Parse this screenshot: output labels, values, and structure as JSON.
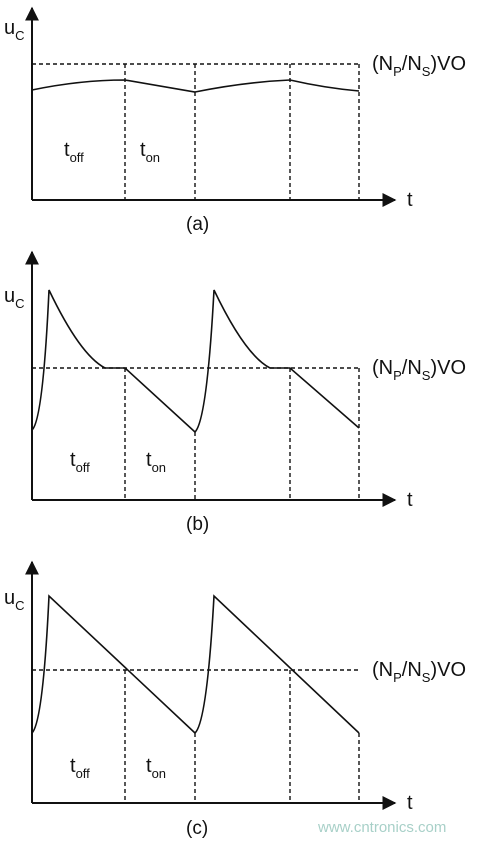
{
  "panels": [
    {
      "caption": "(a)",
      "y_axis_label": {
        "main": "u",
        "sub": "C"
      },
      "x_axis_label": "t",
      "level_label": {
        "p1": "(N",
        "s1": "P",
        "p2": "/N",
        "s2": "S",
        "p3": ")VO"
      },
      "off_label": {
        "main": "t",
        "sub": "off"
      },
      "on_label": {
        "main": "t",
        "sub": "on"
      }
    },
    {
      "caption": "(b)",
      "y_axis_label": {
        "main": "u",
        "sub": "C"
      },
      "x_axis_label": "t",
      "level_label": {
        "p1": "(N",
        "s1": "P",
        "p2": "/N",
        "s2": "S",
        "p3": ")VO"
      },
      "off_label": {
        "main": "t",
        "sub": "off"
      },
      "on_label": {
        "main": "t",
        "sub": "on"
      }
    },
    {
      "caption": "(c)",
      "y_axis_label": {
        "main": "u",
        "sub": "C"
      },
      "x_axis_label": "t",
      "level_label": {
        "p1": "(N",
        "s1": "P",
        "p2": "/N",
        "s2": "S",
        "p3": ")VO"
      },
      "off_label": {
        "main": "t",
        "sub": "off"
      },
      "on_label": {
        "main": "t",
        "sub": "on"
      }
    }
  ],
  "watermark": "www.cntronics.com",
  "colors": {
    "ink": "#111111",
    "watermark": "#a8d0c8",
    "background": "#ffffff"
  }
}
